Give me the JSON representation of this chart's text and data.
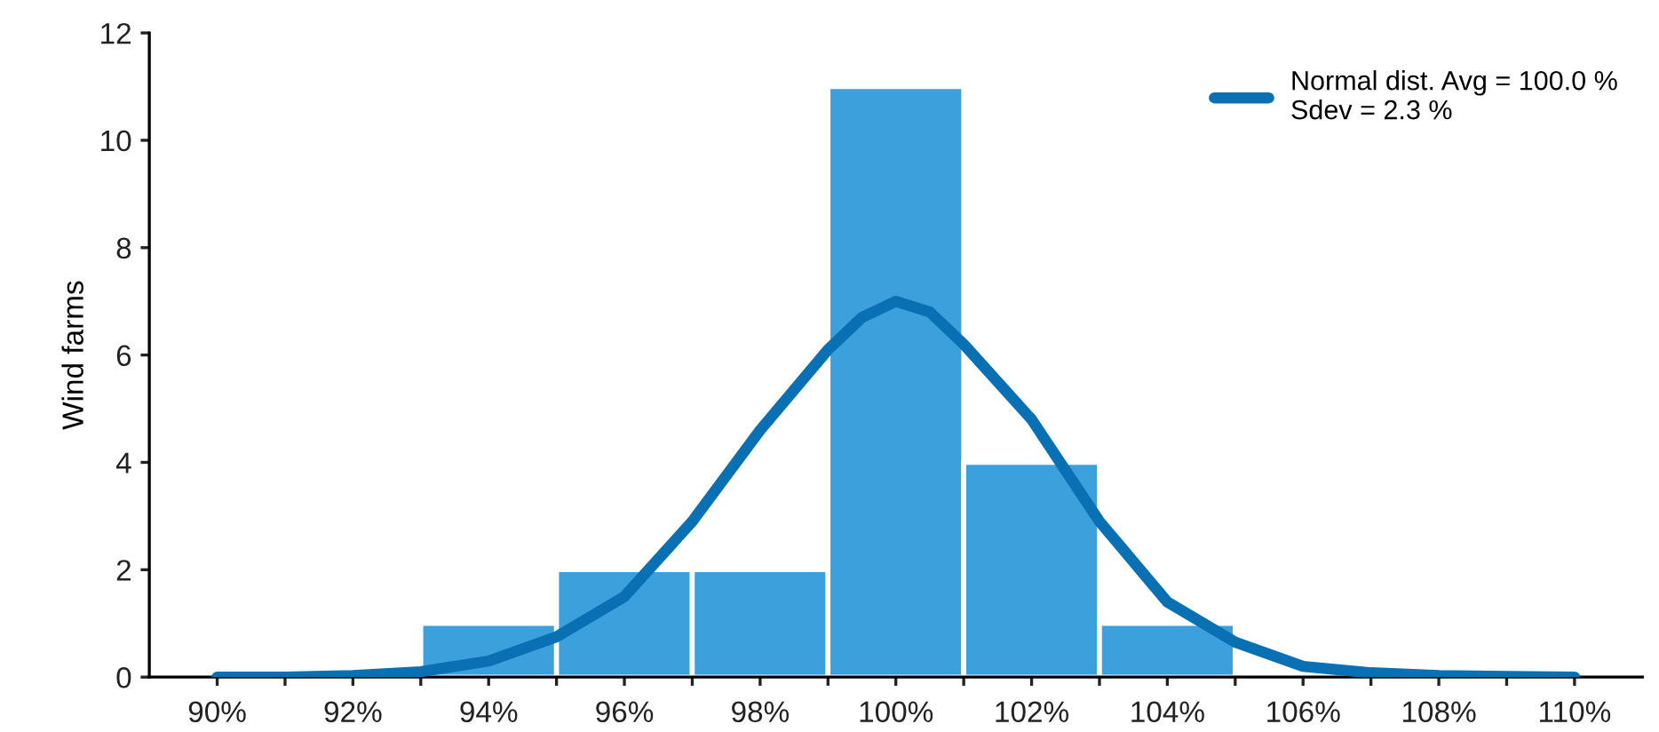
{
  "chart_data": {
    "type": "histogram",
    "ylabel": "Wind farms",
    "bins": [
      93,
      95,
      97,
      99,
      101,
      103,
      105
    ],
    "values": [
      1,
      2,
      2,
      11,
      4,
      1
    ],
    "color": "#3ba0dc",
    "series": [
      {
        "type": "line",
        "name": "Normal dist. Avg = 100.0 %\nSdev = 2.3 %",
        "color": "#0a70b4",
        "x": [
          90,
          91,
          92,
          93,
          94,
          95,
          96,
          97,
          98,
          99,
          99.5,
          100,
          100.5,
          101,
          102,
          103,
          104,
          105,
          106,
          107,
          108,
          109,
          110
        ],
        "values": [
          0,
          0,
          0.03,
          0.1,
          0.3,
          0.75,
          1.5,
          2.9,
          4.6,
          6.1,
          6.7,
          7.0,
          6.8,
          6.2,
          4.8,
          2.9,
          1.4,
          0.65,
          0.2,
          0.08,
          0.03,
          0.01,
          0
        ]
      }
    ],
    "xlim": [
      89,
      111
    ],
    "xticks": [
      {
        "value": 90,
        "label": "90%"
      },
      {
        "value": 91,
        "label": null
      },
      {
        "value": 92,
        "label": "92%"
      },
      {
        "value": 93,
        "label": null
      },
      {
        "value": 94,
        "label": "94%"
      },
      {
        "value": 95,
        "label": null
      },
      {
        "value": 96,
        "label": "96%"
      },
      {
        "value": 97,
        "label": null
      },
      {
        "value": 98,
        "label": "98%"
      },
      {
        "value": 99,
        "label": null
      },
      {
        "value": 100,
        "label": "100%"
      },
      {
        "value": 101,
        "label": null
      },
      {
        "value": 102,
        "label": "102%"
      },
      {
        "value": 103,
        "label": null
      },
      {
        "value": 104,
        "label": "104%"
      },
      {
        "value": 105,
        "label": null
      },
      {
        "value": 106,
        "label": "106%"
      },
      {
        "value": 107,
        "label": null
      },
      {
        "value": 108,
        "label": "108%"
      },
      {
        "value": 109,
        "label": null
      },
      {
        "value": 110,
        "label": "110%"
      }
    ],
    "ylim": [
      0,
      12
    ],
    "yticks": [
      0,
      2,
      4,
      6,
      8,
      10,
      12
    ],
    "grid": false,
    "legend": "top right"
  }
}
